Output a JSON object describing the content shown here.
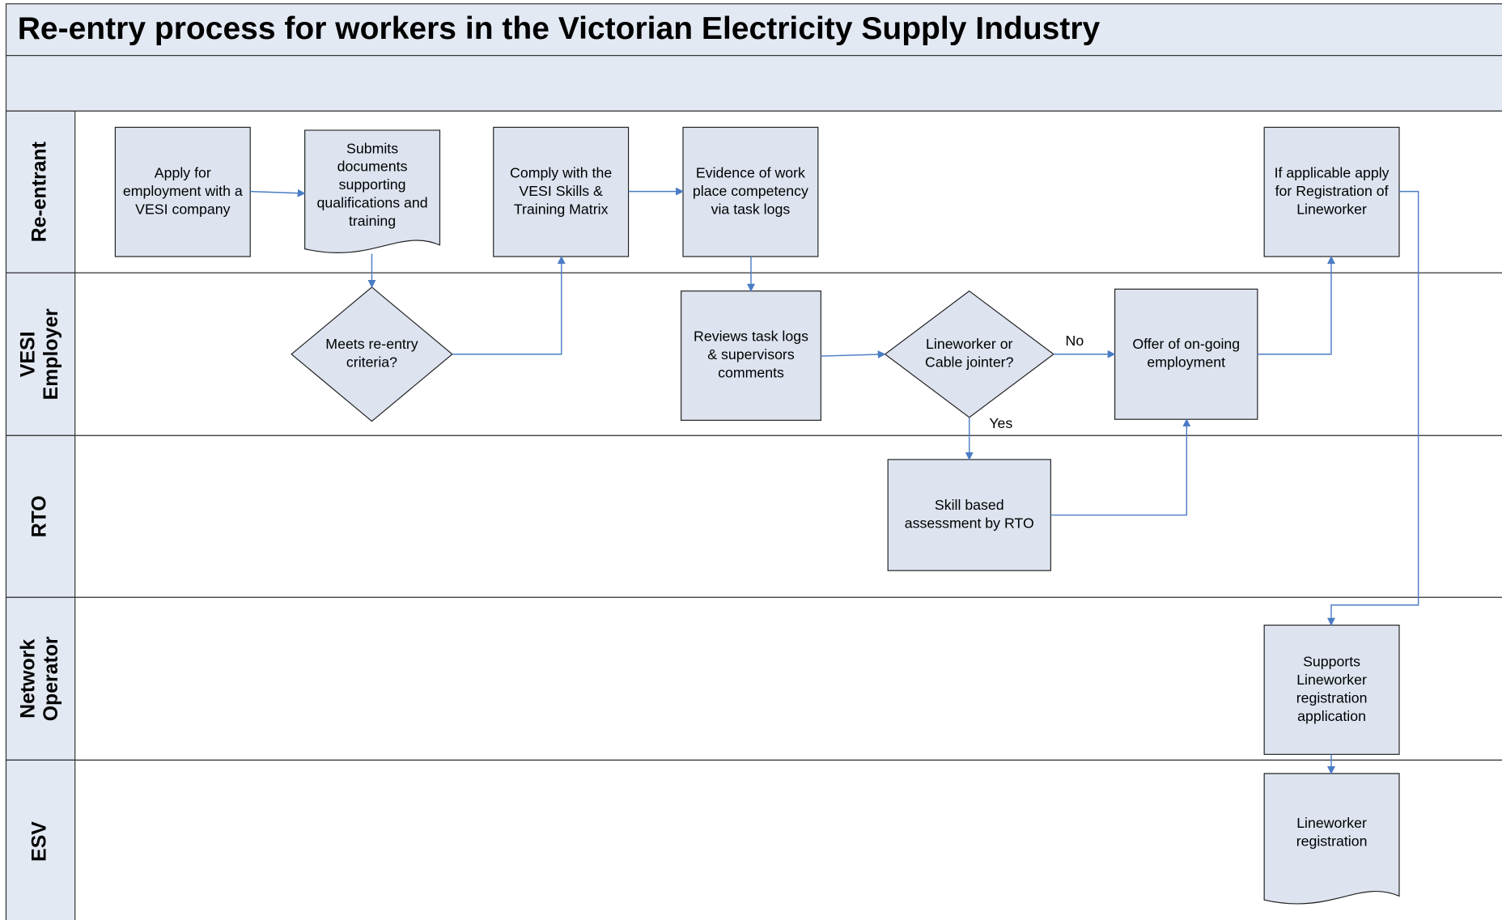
{
  "title": "Re-entry process for workers in the Victorian Electricity Supply Industry",
  "lanes": [
    [
      "Re-entrant"
    ],
    [
      "VESI",
      "Employer"
    ],
    [
      "RTO"
    ],
    [
      "Network",
      "Operator"
    ],
    [
      "ESV"
    ]
  ],
  "nodes": [
    {
      "shape": "process",
      "lines": [
        "Apply for",
        "employment with a",
        "VESI company"
      ]
    },
    {
      "shape": "document",
      "lines": [
        "Submits",
        "documents",
        "supporting",
        "qualifications and",
        "training"
      ]
    },
    {
      "shape": "process",
      "lines": [
        "Comply with the",
        "VESI Skills &",
        "Training Matrix"
      ]
    },
    {
      "shape": "process",
      "lines": [
        "Evidence of work",
        "place competency",
        "via task logs"
      ]
    },
    {
      "shape": "process",
      "lines": [
        "If applicable apply",
        "for Registration of",
        "Lineworker"
      ]
    },
    {
      "shape": "decision",
      "lines": [
        "Meets re-entry",
        "criteria?"
      ]
    },
    {
      "shape": "process",
      "lines": [
        "Reviews task logs",
        "& supervisors",
        "comments"
      ]
    },
    {
      "shape": "decision",
      "lines": [
        "Lineworker or",
        "Cable jointer?"
      ]
    },
    {
      "shape": "process",
      "lines": [
        "Offer of on-going",
        "employment"
      ]
    },
    {
      "shape": "process",
      "lines": [
        "Skill based",
        "assessment by RTO"
      ]
    },
    {
      "shape": "process",
      "lines": [
        "Supports",
        "Lineworker",
        "registration",
        "application"
      ]
    },
    {
      "shape": "document",
      "lines": [
        "Lineworker",
        "registration"
      ]
    }
  ],
  "edge_labels": {
    "no": "No",
    "yes": "Yes"
  }
}
